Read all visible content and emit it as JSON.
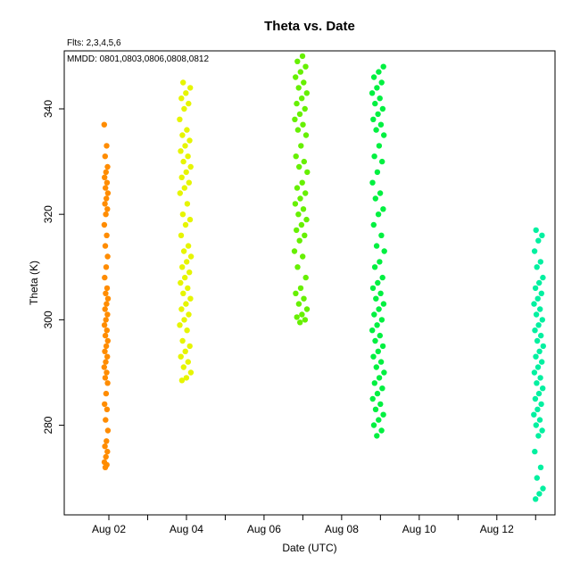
{
  "chart_data": {
    "type": "scatter",
    "title": "Theta  vs. Date",
    "annotations": [
      "Flts: 2,3,4,5,6",
      "MMDD: 0801,0803,0806,0808,0812"
    ],
    "xlabel": "Date (UTC)",
    "ylabel": "Theta (K)",
    "x_tick_labels": [
      "Aug 02",
      "Aug 04",
      "Aug 06",
      "Aug 08",
      "Aug 10",
      "Aug 12"
    ],
    "x_tick_values": [
      2,
      3,
      4,
      5,
      6,
      7,
      8,
      9,
      10,
      11,
      12,
      13
    ],
    "y_ticks": [
      280,
      300,
      320,
      340
    ],
    "xlim": [
      0.85,
      13.5
    ],
    "ylim": [
      263,
      351
    ],
    "grid": false,
    "series": [
      {
        "flight": 2,
        "date": "0801",
        "color": "#ff8c00",
        "x_range": [
          1.88,
          1.98
        ],
        "y": [
          337,
          333,
          331,
          329,
          328,
          327,
          326,
          325,
          324,
          323,
          322,
          321,
          320,
          318,
          316,
          314,
          312,
          310,
          308,
          306,
          305,
          304,
          303,
          302,
          301,
          300,
          299,
          298,
          297,
          296,
          295,
          294,
          293,
          292,
          291,
          290,
          289,
          288,
          286,
          284,
          283,
          281,
          279,
          277,
          276,
          275,
          274,
          273,
          272.5,
          272
        ]
      },
      {
        "flight": 3,
        "date": "0803",
        "color": "#e6f500",
        "x_range": [
          3.82,
          4.12
        ],
        "y": [
          345,
          344,
          343,
          342,
          341,
          340,
          338,
          336,
          335,
          334,
          333,
          332,
          331,
          330,
          329,
          328,
          327,
          326,
          325,
          324,
          322,
          320,
          319,
          318,
          316,
          314,
          313,
          312,
          311,
          310,
          309,
          308,
          307,
          306,
          305,
          304,
          303,
          302,
          301,
          300,
          299,
          298,
          296,
          295,
          294,
          293,
          292,
          291,
          290,
          289,
          288.5
        ]
      },
      {
        "flight": 4,
        "date": "0806",
        "color": "#66f000",
        "x_range": [
          6.78,
          7.12
        ],
        "y": [
          350,
          349,
          348,
          347,
          346,
          345,
          344,
          343,
          342,
          341,
          340,
          339,
          338,
          337,
          336,
          335,
          333,
          331,
          330,
          329,
          328,
          326,
          325,
          324,
          323,
          322,
          321,
          320,
          319,
          318,
          317,
          316,
          315,
          313,
          312,
          310,
          308,
          306,
          305,
          304,
          303,
          302,
          301,
          300.5,
          300,
          299.5
        ]
      },
      {
        "flight": 5,
        "date": "0808",
        "color": "#00f040",
        "x_range": [
          8.78,
          9.1
        ],
        "y": [
          348,
          347,
          346,
          345,
          344,
          343,
          342,
          341,
          340,
          339,
          338,
          337,
          336,
          335,
          333,
          331,
          330,
          328,
          326,
          324,
          323,
          321,
          320,
          318,
          316,
          314,
          313,
          311,
          310,
          308,
          307,
          306,
          305,
          304,
          303,
          302,
          301,
          300,
          299,
          298,
          297,
          296,
          295,
          294,
          293,
          292,
          291,
          290,
          289,
          288,
          287,
          286,
          285,
          284,
          283,
          282,
          281,
          280,
          279,
          278
        ]
      },
      {
        "flight": 6,
        "date": "0812",
        "color": "#00f0a0",
        "x_range": [
          12.95,
          13.2
        ],
        "y": [
          317,
          316,
          315,
          313,
          311,
          310,
          308,
          307,
          306,
          305,
          304,
          303,
          302,
          301,
          300,
          299,
          298,
          297,
          296,
          295,
          294,
          293,
          292,
          291,
          290,
          289,
          288,
          287,
          286,
          285,
          284,
          283,
          282,
          281,
          280,
          279,
          278,
          275,
          272,
          270,
          268,
          267,
          266
        ]
      }
    ]
  }
}
